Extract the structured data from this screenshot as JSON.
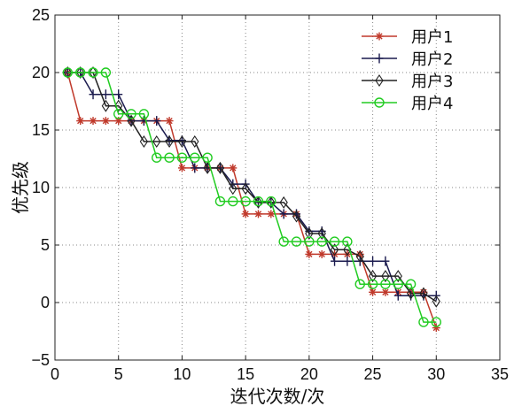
{
  "chart_data": {
    "type": "line",
    "xlabel": "迭代次数/次",
    "ylabel": "优先级",
    "xlim": [
      0,
      35
    ],
    "ylim": [
      -5,
      25
    ],
    "xticks": [
      0,
      5,
      10,
      15,
      20,
      25,
      30,
      35
    ],
    "yticks": [
      -5,
      0,
      5,
      10,
      15,
      20,
      25
    ],
    "xtick_labels": [
      "0",
      "5",
      "10",
      "15",
      "20",
      "25",
      "30",
      "35"
    ],
    "ytick_labels": [
      "−5",
      "0",
      "5",
      "10",
      "15",
      "20",
      "25"
    ],
    "grid": true,
    "legend_position": "top-right",
    "series": [
      {
        "name": "用户1",
        "color": "#c0392b",
        "marker": "asterisk",
        "x": [
          1,
          2,
          3,
          4,
          5,
          6,
          7,
          8,
          9,
          10,
          11,
          12,
          13,
          14,
          15,
          16,
          17,
          18,
          19,
          20,
          21,
          22,
          23,
          24,
          25,
          26,
          27,
          28,
          29,
          30
        ],
        "y": [
          20,
          15.8,
          15.8,
          15.8,
          15.8,
          15.8,
          15.8,
          15.8,
          15.8,
          11.7,
          11.7,
          11.7,
          11.7,
          11.7,
          7.7,
          7.7,
          7.7,
          7.7,
          7.7,
          4.2,
          4.2,
          4.2,
          4.2,
          4.2,
          0.9,
          0.9,
          0.9,
          0.9,
          0.9,
          -2.2
        ]
      },
      {
        "name": "用户2",
        "color": "#1a1a4e",
        "marker": "plus",
        "x": [
          1,
          2,
          3,
          4,
          5,
          6,
          7,
          8,
          9,
          10,
          11,
          12,
          13,
          14,
          15,
          16,
          17,
          18,
          19,
          20,
          21,
          22,
          23,
          24,
          25,
          26,
          27,
          28,
          29,
          30
        ],
        "y": [
          20,
          20,
          18.1,
          18.1,
          18.1,
          15.8,
          15.8,
          15.8,
          14.1,
          14.1,
          11.7,
          11.7,
          11.7,
          10.3,
          10.3,
          8.7,
          8.7,
          7.7,
          7.7,
          6.2,
          6.2,
          3.6,
          3.6,
          3.6,
          3.6,
          3.6,
          0.6,
          0.6,
          0.6,
          0.6
        ]
      },
      {
        "name": "用户3",
        "color": "#222222",
        "marker": "diamond",
        "x": [
          1,
          2,
          3,
          4,
          5,
          6,
          7,
          8,
          9,
          10,
          11,
          12,
          13,
          14,
          15,
          16,
          17,
          18,
          19,
          20,
          21,
          22,
          23,
          24,
          25,
          26,
          27,
          28,
          29,
          30
        ],
        "y": [
          20,
          20,
          20,
          17.1,
          17.1,
          15.8,
          14.0,
          14.0,
          14.0,
          14.0,
          14.0,
          11.7,
          11.7,
          9.9,
          9.9,
          8.7,
          8.7,
          8.7,
          7.5,
          6.0,
          6.0,
          4.6,
          4.6,
          4.0,
          2.3,
          2.3,
          2.3,
          0.8,
          0.8,
          0.1
        ]
      },
      {
        "name": "用户4",
        "color": "#22cc22",
        "marker": "circle",
        "x": [
          1,
          2,
          3,
          4,
          5,
          6,
          7,
          8,
          9,
          10,
          11,
          12,
          13,
          14,
          15,
          16,
          17,
          18,
          19,
          20,
          21,
          22,
          23,
          24,
          25,
          26,
          27,
          28,
          29,
          30
        ],
        "y": [
          20,
          20,
          20,
          20,
          16.4,
          16.4,
          16.4,
          12.6,
          12.6,
          12.6,
          12.6,
          12.6,
          8.8,
          8.8,
          8.8,
          8.8,
          8.8,
          5.3,
          5.3,
          5.3,
          5.3,
          5.3,
          5.3,
          1.6,
          1.6,
          1.6,
          1.6,
          1.6,
          -1.7,
          -1.7
        ]
      }
    ]
  }
}
